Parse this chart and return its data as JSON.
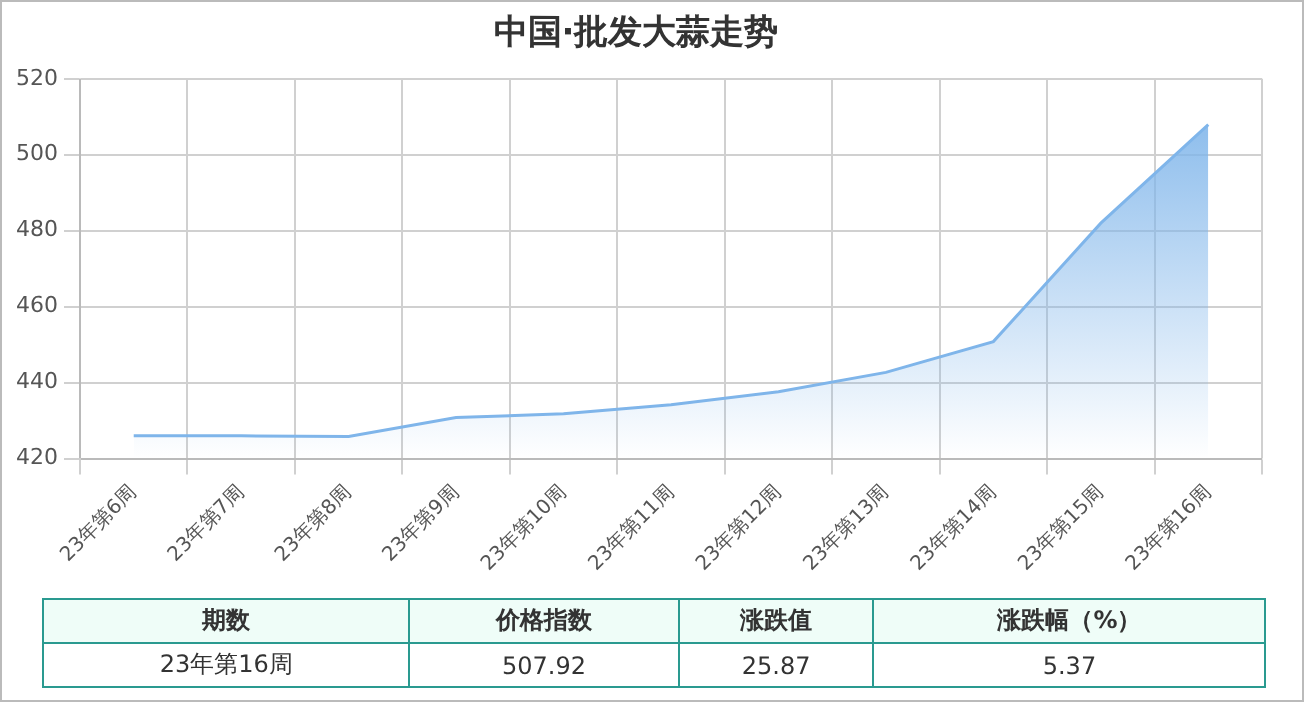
{
  "chart_data": {
    "type": "area",
    "title": "中国·批发大蒜走势",
    "categories": [
      "23年第6周",
      "23年第7周",
      "23年第8周",
      "23年第9周",
      "23年第10周",
      "23年第11周",
      "23年第12周",
      "23年第13周",
      "23年第14周",
      "23年第15周",
      "23年第16周"
    ],
    "values": [
      426,
      426,
      425.8,
      430.8,
      431.8,
      434.2,
      437.6,
      442.7,
      450.8,
      482,
      507.92
    ],
    "color": "#7fb5ea",
    "ylim": [
      420,
      520
    ],
    "yticks": [
      420,
      440,
      460,
      480,
      500,
      520
    ],
    "grid": true,
    "marker": "none",
    "legend": false,
    "annotations": [
      "期数",
      "价格指数",
      "涨跌值",
      "涨跌幅（%）",
      "23年第16周",
      "507.92",
      "25.87",
      "5.37"
    ]
  }
}
